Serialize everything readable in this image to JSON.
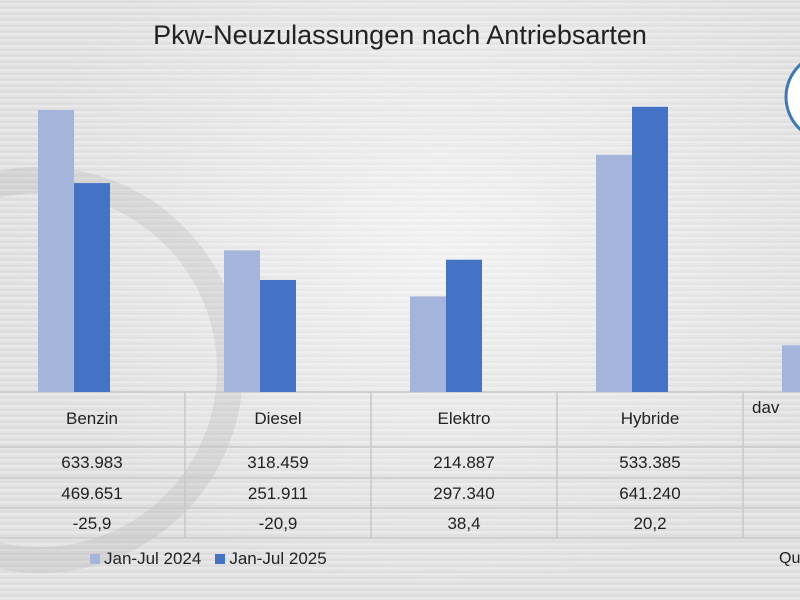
{
  "chart_data": {
    "type": "bar",
    "title": "Pkw-Neuzulassungen nach Antriebsarten",
    "categories": [
      "Benzin",
      "Diesel",
      "Elektro",
      "Hybride",
      "dav"
    ],
    "series": [
      {
        "name": "Jan-Jul 2024",
        "values": [
          633983,
          318459,
          214887,
          533385,
          105000
        ],
        "color": "#a5b4db"
      },
      {
        "name": "Jan-Jul 2025",
        "values": [
          469651,
          251911,
          297340,
          641240,
          null
        ],
        "color": "#4472c4"
      }
    ],
    "table": {
      "rows": [
        [
          "633.983",
          "318.459",
          "214.887",
          "533.385",
          ""
        ],
        [
          "469.651",
          "251.911",
          "297.340",
          "641.240",
          ""
        ],
        [
          "-25,9",
          "-20,9",
          "38,4",
          "20,2",
          ""
        ]
      ]
    },
    "ylim": [
      0,
      700000
    ],
    "grid": false,
    "legend": "bottom"
  },
  "source_label": "Qu"
}
